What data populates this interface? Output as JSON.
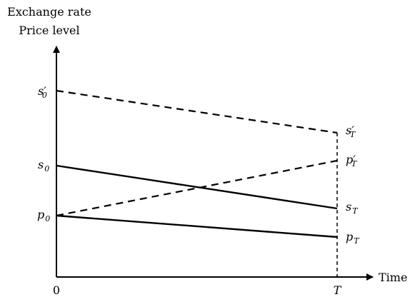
{
  "axes": {
    "y_title_line1": "Exchange rate",
    "y_title_line2": "Price level",
    "x_title": "Time",
    "origin_label": "0",
    "t_label": "T"
  },
  "left_labels": {
    "s0_prime": {
      "base": "s",
      "prime": "′",
      "sub": "0"
    },
    "s0": {
      "base": "s",
      "sub": "0"
    },
    "p0": {
      "base": "p",
      "sub": "0"
    }
  },
  "right_labels": {
    "sT_prime": {
      "base": "s",
      "prime": "′",
      "sub": "T"
    },
    "pT_prime": {
      "base": "p",
      "prime": "′",
      "sub": "T"
    },
    "sT": {
      "base": "s",
      "sub": "T"
    },
    "pT": {
      "base": "p",
      "sub": "T"
    }
  }
}
